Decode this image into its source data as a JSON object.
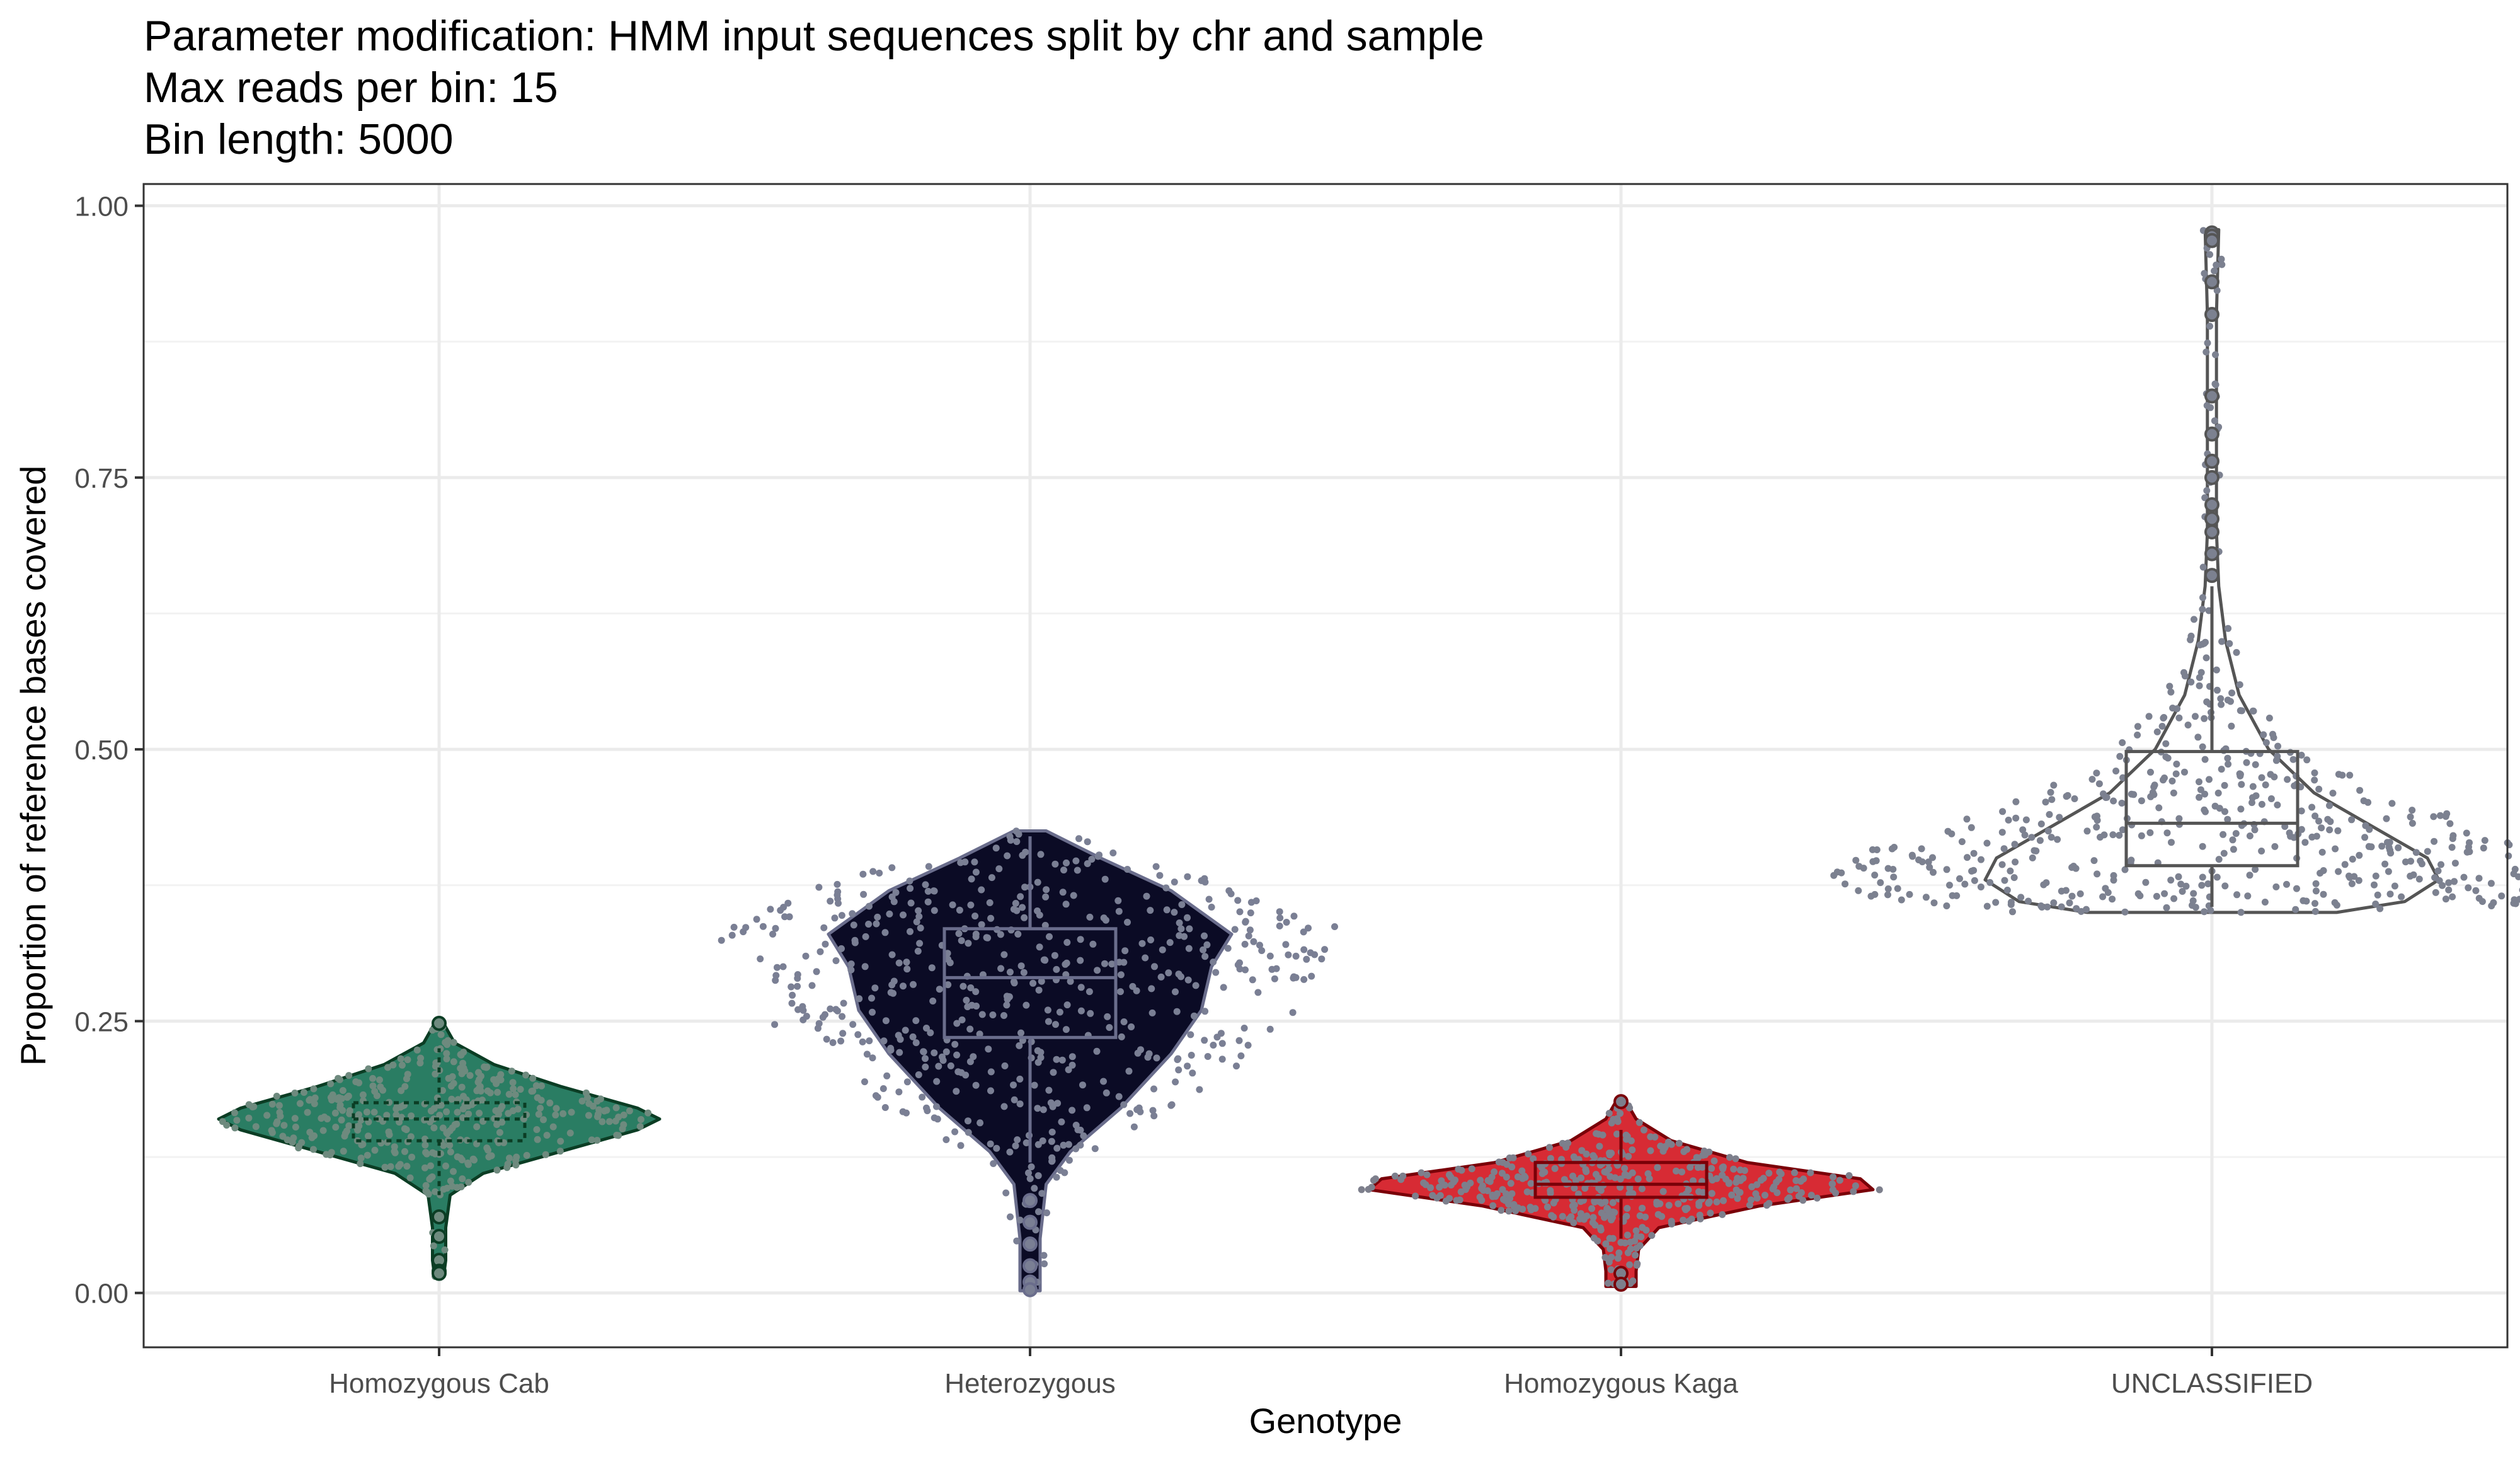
{
  "title_lines": [
    "Parameter modification: HMM input sequences split by chr and sample",
    "Max reads per bin: 15",
    "Bin length: 5000"
  ],
  "chart_data": {
    "type": "violin",
    "title": "Parameter modification: HMM input sequences split by chr and sample\nMax reads per bin: 15\nBin length: 5000",
    "xlabel": "Genotype",
    "ylabel": "Proportion of reference bases covered",
    "ylim": [
      -0.05,
      1.02
    ],
    "yticks": [
      0.0,
      0.25,
      0.5,
      0.75,
      1.0
    ],
    "ytick_labels": [
      "0.00",
      "0.25",
      "0.50",
      "0.75",
      "1.00"
    ],
    "grid": true,
    "legend": "none",
    "categories": [
      "Homozygous Cab",
      "Heterozygous",
      "Homozygous Kaga",
      "UNCLASSIFIED"
    ],
    "series": [
      {
        "category": "Homozygous Cab",
        "fill": "#2a7d63",
        "line": "#0b3d24",
        "point_color": "#6e8a7e",
        "box": {
          "q1": 0.14,
          "median": 0.16,
          "q3": 0.175,
          "whisker_low": 0.09,
          "whisker_high": 0.225
        },
        "min": 0.015,
        "max": 0.248,
        "outliers": [
          0.248,
          0.07,
          0.052,
          0.03,
          0.02,
          0.018
        ],
        "density": [
          [
            0.015,
            0.02
          ],
          [
            0.03,
            0.03
          ],
          [
            0.06,
            0.03
          ],
          [
            0.09,
            0.05
          ],
          [
            0.11,
            0.2
          ],
          [
            0.13,
            0.55
          ],
          [
            0.15,
            0.9
          ],
          [
            0.16,
            1.0
          ],
          [
            0.17,
            0.9
          ],
          [
            0.19,
            0.55
          ],
          [
            0.21,
            0.25
          ],
          [
            0.23,
            0.07
          ],
          [
            0.248,
            0.02
          ]
        ]
      },
      {
        "category": "Heterozygous",
        "fill": "#0b0b25",
        "line": "#6a6d8c",
        "point_color": "#7a7f94",
        "box": {
          "q1": 0.235,
          "median": 0.29,
          "q3": 0.335,
          "whisker_low": 0.12,
          "whisker_high": 0.42
        },
        "min": 0.002,
        "max": 0.425,
        "outliers": [
          0.085,
          0.065,
          0.045,
          0.025,
          0.01,
          0.003
        ],
        "density": [
          [
            0.002,
            0.05
          ],
          [
            0.05,
            0.05
          ],
          [
            0.1,
            0.08
          ],
          [
            0.13,
            0.2
          ],
          [
            0.17,
            0.45
          ],
          [
            0.22,
            0.7
          ],
          [
            0.26,
            0.85
          ],
          [
            0.3,
            0.9
          ],
          [
            0.33,
            1.0
          ],
          [
            0.37,
            0.7
          ],
          [
            0.4,
            0.35
          ],
          [
            0.425,
            0.08
          ]
        ]
      },
      {
        "category": "Homozygous Kaga",
        "fill": "#d72b34",
        "line": "#7a0008",
        "point_color": "#7d7f8c",
        "box": {
          "q1": 0.088,
          "median": 0.1,
          "q3": 0.12,
          "whisker_low": 0.05,
          "whisker_high": 0.15
        },
        "min": 0.006,
        "max": 0.176,
        "outliers": [
          0.176,
          0.018,
          0.008
        ],
        "density": [
          [
            0.006,
            0.06
          ],
          [
            0.02,
            0.06
          ],
          [
            0.04,
            0.07
          ],
          [
            0.06,
            0.15
          ],
          [
            0.08,
            0.55
          ],
          [
            0.095,
            1.0
          ],
          [
            0.105,
            0.95
          ],
          [
            0.12,
            0.5
          ],
          [
            0.14,
            0.2
          ],
          [
            0.16,
            0.06
          ],
          [
            0.176,
            0.02
          ]
        ]
      },
      {
        "category": "UNCLASSIFIED",
        "fill": "#ffffff",
        "line": "#555555",
        "point_color": "#7c8190",
        "box": {
          "q1": 0.393,
          "median": 0.432,
          "q3": 0.498,
          "whisker_low": 0.355,
          "whisker_high": 0.65
        },
        "min": 0.35,
        "max": 0.978,
        "outliers": [
          0.975,
          0.972,
          0.968,
          0.93,
          0.9,
          0.825,
          0.79,
          0.765,
          0.75,
          0.725,
          0.712,
          0.7,
          0.68,
          0.66
        ],
        "density": [
          [
            0.35,
            0.55
          ],
          [
            0.36,
            0.85
          ],
          [
            0.38,
            1.0
          ],
          [
            0.4,
            0.95
          ],
          [
            0.43,
            0.7
          ],
          [
            0.46,
            0.45
          ],
          [
            0.5,
            0.25
          ],
          [
            0.55,
            0.12
          ],
          [
            0.6,
            0.06
          ],
          [
            0.65,
            0.03
          ],
          [
            0.7,
            0.02
          ],
          [
            0.8,
            0.02
          ],
          [
            0.9,
            0.02
          ],
          [
            0.978,
            0.03
          ]
        ]
      }
    ]
  }
}
